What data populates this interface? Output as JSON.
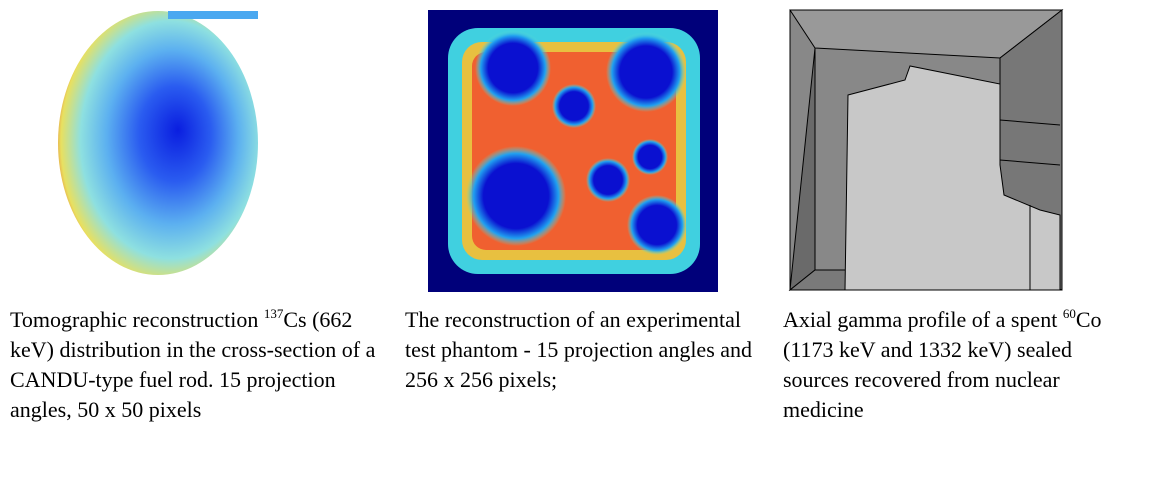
{
  "panels": [
    {
      "caption": {
        "before": "Tomographic reconstruction ",
        "sup": "137",
        "after": "Cs (662 keV) distribution in the cross-section of a CANDU-type fuel rod. 15 projection angles, 50 x 50 pixels"
      }
    },
    {
      "caption": {
        "before": "The reconstruction of an experimental test phantom - 15 projection angles and 256 x 256 pixels;"
      }
    },
    {
      "caption": {
        "before": "Axial gamma profile of a spent ",
        "sup": "60",
        "after": "Co (1173 keV and 1332 keV) sealed sources recovered from nuclear medicine"
      }
    }
  ]
}
